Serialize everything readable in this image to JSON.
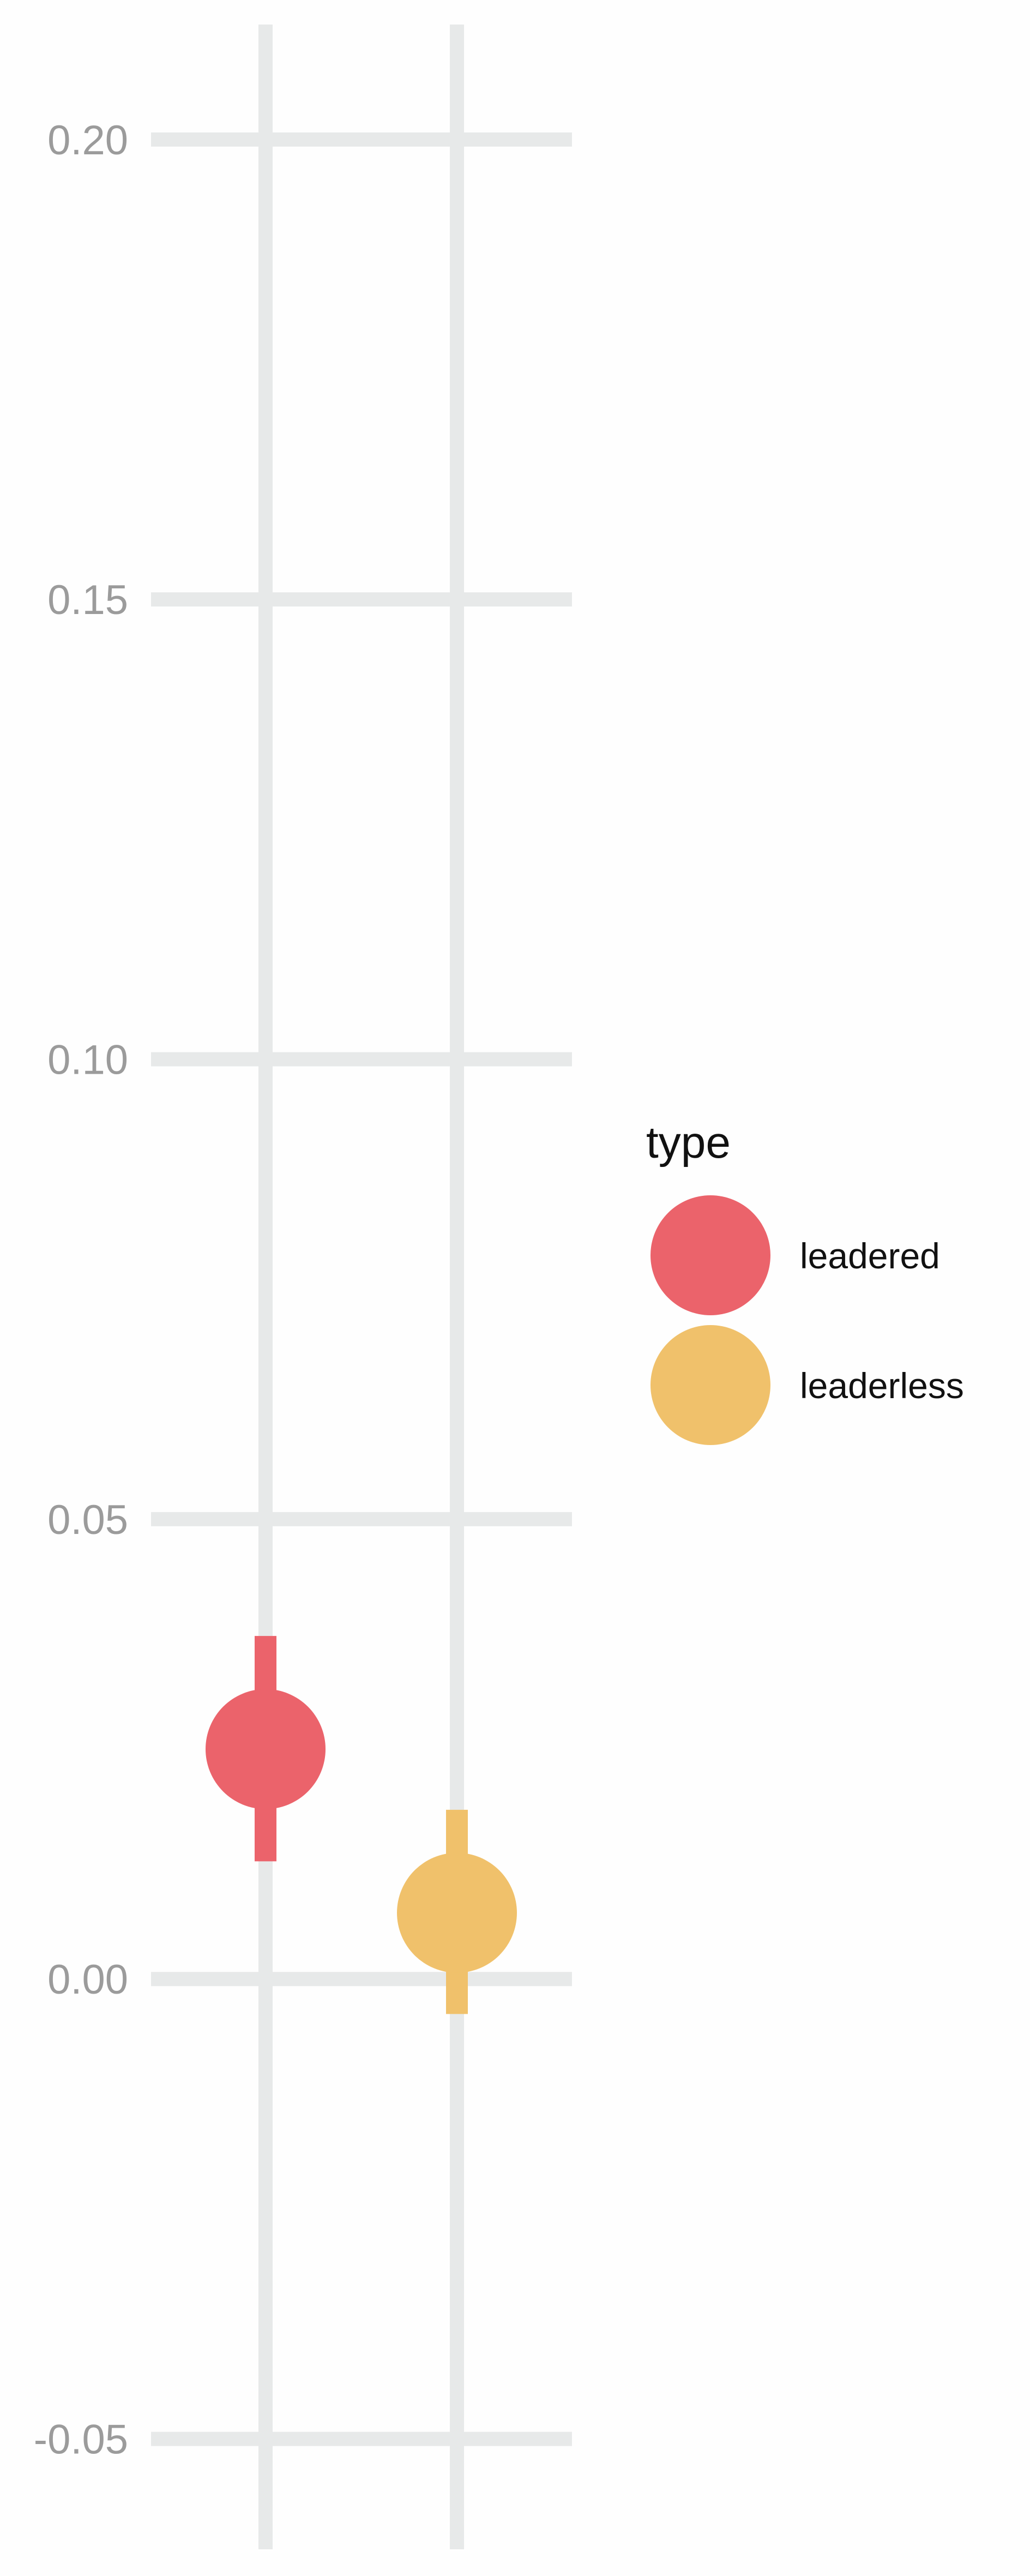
{
  "chart_data": {
    "type": "scatter",
    "title": "",
    "xlabel": "",
    "ylabel": "",
    "ylim": [
      -0.062,
      0.2125
    ],
    "y_ticks": [
      -0.05,
      0.0,
      0.05,
      0.1,
      0.15,
      0.2
    ],
    "y_tick_labels": [
      "-0.05",
      "0.00",
      "0.05",
      "0.10",
      "0.15",
      "0.20"
    ],
    "x_positions": 2,
    "grid": true,
    "legend": {
      "title": "type",
      "position": "right",
      "entries": [
        "leadered",
        "leaderless"
      ]
    },
    "series": [
      {
        "name": "leadered",
        "color": "#eb636b",
        "x": 1,
        "y": 0.025,
        "ci_low": 0.0128,
        "ci_high": 0.0373
      },
      {
        "name": "leaderless",
        "color": "#f0c16b",
        "x": 2,
        "y": 0.0072,
        "ci_low": -0.0038,
        "ci_high": 0.0184
      }
    ]
  }
}
